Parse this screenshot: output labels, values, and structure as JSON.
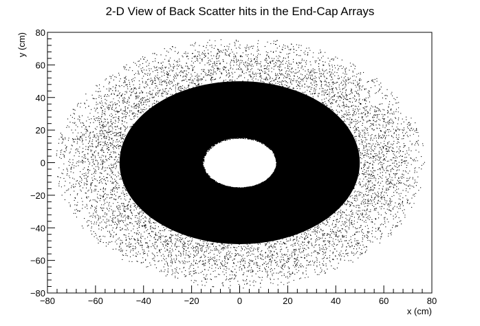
{
  "chart_data": {
    "type": "scatter",
    "title": "2-D View of Back Scatter hits in the End-Cap Arrays",
    "xlabel": "x (cm)",
    "ylabel": "y (cm)",
    "xlim": [
      -80,
      80
    ],
    "ylim": [
      -80,
      80
    ],
    "x_ticks": [
      -80,
      -60,
      -40,
      -20,
      0,
      20,
      40,
      60,
      80
    ],
    "y_ticks": [
      -80,
      -60,
      -40,
      -20,
      0,
      20,
      40,
      60,
      80
    ],
    "x_tick_labels": [
      "−80",
      "−60",
      "−40",
      "−20",
      "0",
      "20",
      "40",
      "60",
      "80"
    ],
    "y_tick_labels": [
      "−80",
      "−60",
      "−40",
      "−20",
      "0",
      "20",
      "40",
      "60",
      "80"
    ],
    "grid": false,
    "distribution": {
      "shape": "annulus",
      "center": [
        0,
        0
      ],
      "inner_radius": 15,
      "outer_radius": 77,
      "dense_core_radius": 50
    },
    "colors": {
      "marker": "#000000",
      "background": "#ffffff",
      "axis": "#000000"
    }
  }
}
